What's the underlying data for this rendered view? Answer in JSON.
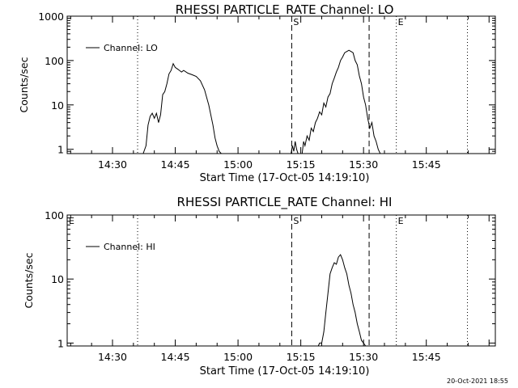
{
  "footer": {
    "timestamp": "20-Oct-2021 18:55"
  },
  "chart_data": [
    {
      "type": "line",
      "title": "RHESSI PARTICLE_RATE Channel: LO",
      "xlabel": "Start Time (17-Oct-05 14:19:10)",
      "ylabel": "Counts/sec",
      "yscale": "log",
      "xlim": [
        "14:19:10",
        "16:01:30"
      ],
      "ylim": [
        0.8,
        1000
      ],
      "x_ticks": [
        "14:30",
        "14:45",
        "15:00",
        "15:15",
        "15:30",
        "15:45"
      ],
      "y_ticks": [
        "1",
        "10",
        "100",
        "1000"
      ],
      "legend": {
        "position": "top-left",
        "entries": [
          "Channel: LO"
        ]
      },
      "markers": [
        {
          "time": "14:36:00",
          "style": "dotted",
          "label": ""
        },
        {
          "time": "15:12:50",
          "style": "dashed",
          "label": "S"
        },
        {
          "time": "15:31:20",
          "style": "dashed",
          "label": ""
        },
        {
          "time": "15:37:50",
          "style": "dotted",
          "label": "E"
        },
        {
          "time": "15:54:50",
          "style": "dotted",
          "label": ""
        }
      ],
      "series": [
        {
          "name": "Channel: LO",
          "segments": [
            {
              "x": [
                "14:37:20",
                "14:38:00",
                "14:38:30",
                "14:39:00",
                "14:39:30",
                "14:40:00",
                "14:40:30",
                "14:41:00",
                "14:41:30",
                "14:42:00",
                "14:42:30",
                "14:43:00",
                "14:43:30",
                "14:44:00",
                "14:44:30",
                "14:45:00",
                "14:45:30",
                "14:46:00",
                "14:46:30",
                "14:47:00",
                "14:48:00",
                "14:49:00",
                "14:50:00",
                "14:51:00",
                "14:52:00",
                "14:53:00",
                "14:54:00",
                "14:54:30",
                "14:55:00",
                "14:55:30",
                "14:56:00"
              ],
              "y": [
                0.8,
                1.2,
                3.5,
                5.5,
                6.5,
                5.0,
                6.5,
                4.0,
                6.0,
                17,
                20,
                30,
                50,
                60,
                85,
                70,
                65,
                60,
                55,
                60,
                52,
                48,
                44,
                35,
                22,
                10,
                3.5,
                1.8,
                1.2,
                0.9,
                0.8
              ]
            },
            {
              "x": [
                "15:12:40",
                "15:13:00",
                "15:13:20",
                "15:13:40",
                "15:14:00",
                "15:14:20"
              ],
              "y": [
                0.8,
                1.2,
                0.9,
                1.5,
                1.0,
                0.8
              ]
            },
            {
              "x": [
                "15:15:20",
                "15:15:40",
                "15:16:00",
                "15:16:30",
                "15:17:00",
                "15:17:30",
                "15:18:00",
                "15:18:30",
                "15:19:00",
                "15:19:30",
                "15:20:00",
                "15:20:30",
                "15:21:00",
                "15:21:30",
                "15:22:00",
                "15:22:30",
                "15:23:00",
                "15:23:30",
                "15:24:00",
                "15:24:30",
                "15:25:00",
                "15:25:30",
                "15:26:00",
                "15:26:30",
                "15:27:00",
                "15:27:30",
                "15:28:00",
                "15:28:30",
                "15:29:00",
                "15:29:30",
                "15:30:00",
                "15:30:30",
                "15:31:00",
                "15:31:30",
                "15:32:00",
                "15:32:30",
                "15:33:00",
                "15:33:30",
                "15:34:00"
              ],
              "y": [
                0.8,
                1.5,
                1.2,
                2.0,
                1.6,
                3.0,
                2.5,
                4.0,
                5.0,
                7.0,
                6.0,
                11,
                9.0,
                15,
                18,
                30,
                40,
                55,
                70,
                100,
                120,
                150,
                160,
                170,
                160,
                150,
                100,
                80,
                45,
                30,
                15,
                10,
                5.0,
                3.0,
                4.0,
                2.0,
                1.5,
                1.0,
                0.8
              ]
            }
          ]
        }
      ]
    },
    {
      "type": "line",
      "title": "RHESSI PARTICLE_RATE Channel: HI",
      "xlabel": "Start Time (17-Oct-05 14:19:10)",
      "ylabel": "Counts/sec",
      "yscale": "log",
      "xlim": [
        "14:19:10",
        "16:01:30"
      ],
      "ylim": [
        0.9,
        100
      ],
      "x_ticks": [
        "14:30",
        "14:45",
        "15:00",
        "15:15",
        "15:30",
        "15:45"
      ],
      "y_ticks": [
        "1",
        "10",
        "100"
      ],
      "legend": {
        "position": "top-left",
        "entries": [
          "Channel: HI"
        ]
      },
      "markers": [
        {
          "time": "14:19:10",
          "style": "none",
          "label": "E"
        },
        {
          "time": "14:36:00",
          "style": "dotted",
          "label": ""
        },
        {
          "time": "15:12:50",
          "style": "dashed",
          "label": "S"
        },
        {
          "time": "15:31:20",
          "style": "dashed",
          "label": ""
        },
        {
          "time": "15:37:50",
          "style": "dotted",
          "label": "E"
        },
        {
          "time": "15:54:50",
          "style": "dotted",
          "label": ""
        }
      ],
      "series": [
        {
          "name": "Channel: HI",
          "segments": [
            {
              "x": [
                "15:19:10",
                "15:19:30",
                "15:20:00",
                "15:20:30",
                "15:21:00",
                "15:21:30",
                "15:22:00",
                "15:22:30",
                "15:23:00",
                "15:23:30",
                "15:24:00",
                "15:24:30",
                "15:25:00",
                "15:25:30",
                "15:26:00",
                "15:26:30",
                "15:27:00",
                "15:27:30",
                "15:28:00",
                "15:28:30",
                "15:29:00",
                "15:29:30",
                "15:30:00",
                "15:30:30"
              ],
              "y": [
                0.9,
                1.0,
                1.0,
                1.5,
                3.0,
                6.0,
                12,
                15,
                18,
                17,
                22,
                24,
                20,
                15,
                12,
                8.0,
                6.0,
                4.0,
                3.0,
                2.0,
                1.5,
                1.1,
                1.0,
                0.9
              ]
            }
          ]
        }
      ]
    }
  ]
}
